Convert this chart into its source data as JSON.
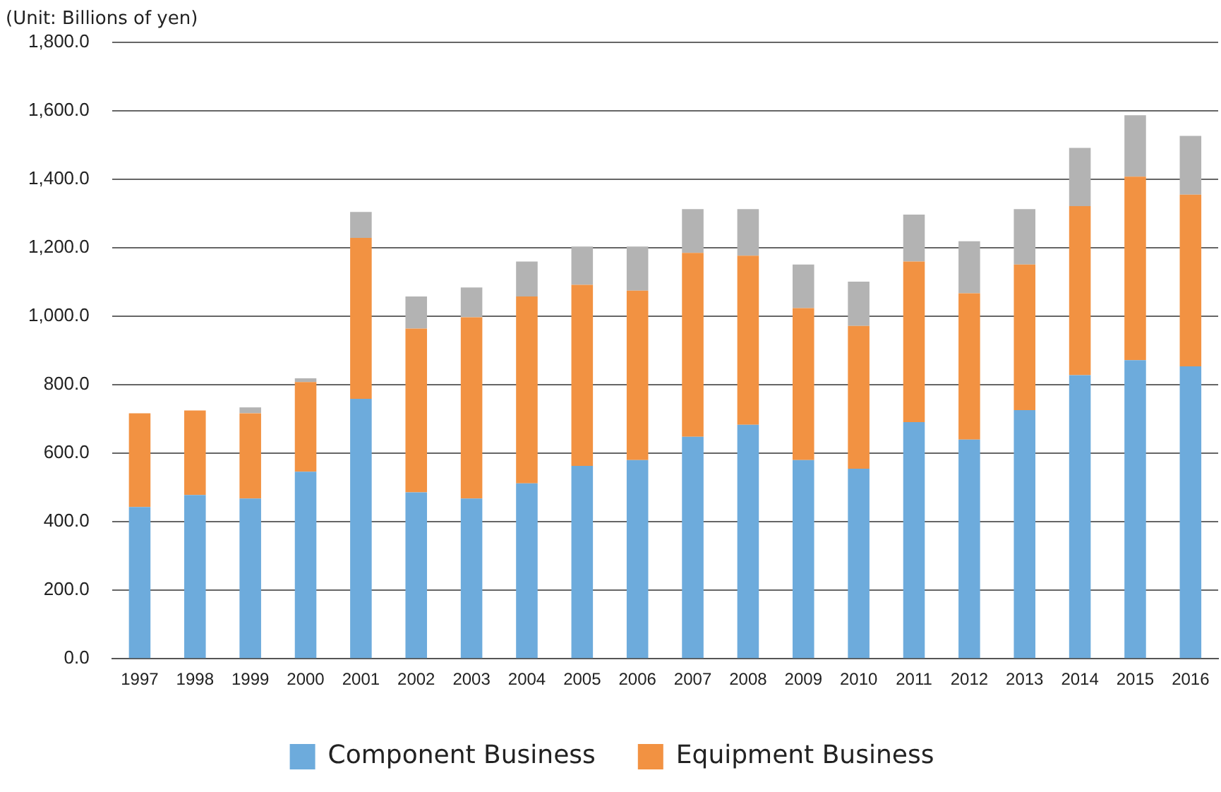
{
  "chart_data": {
    "type": "bar",
    "stacked": true,
    "annotations": [
      "(Unit: Billions of yen)"
    ],
    "categories": [
      "1997",
      "1998",
      "1999",
      "2000",
      "2001",
      "2002",
      "2003",
      "2004",
      "2005",
      "2006",
      "2007",
      "2008",
      "2009",
      "2010",
      "2011",
      "2012",
      "2013",
      "2014",
      "2015",
      "2016"
    ],
    "series": [
      {
        "name": "Component Business",
        "color": "#6dabdc",
        "values": [
          443,
          478,
          468,
          546,
          759,
          486,
          468,
          512,
          563,
          580,
          648,
          683,
          580,
          555,
          691,
          640,
          726,
          828,
          872,
          854
        ]
      },
      {
        "name": "Equipment Business",
        "color": "#f29242",
        "values": [
          274,
          247,
          249,
          262,
          470,
          478,
          529,
          546,
          529,
          495,
          537,
          494,
          444,
          417,
          469,
          427,
          425,
          494,
          536,
          501
        ]
      },
      {
        "color": "#b3b3b3",
        "values": [
          null,
          null,
          17,
          11,
          76,
          94,
          87,
          102,
          112,
          129,
          128,
          136,
          127,
          129,
          137,
          152,
          162,
          170,
          179,
          172
        ]
      }
    ],
    "ylim": [
      0,
      1800
    ],
    "yticks": [
      {
        "value": 0,
        "label": "0.0"
      },
      {
        "value": 200,
        "label": "200.0"
      },
      {
        "value": 400,
        "label": "400.0"
      },
      {
        "value": 600,
        "label": "600.0"
      },
      {
        "value": 800,
        "label": "800.0"
      },
      {
        "value": 1000,
        "label": "1,000.0"
      },
      {
        "value": 1200,
        "label": "1,200.0"
      },
      {
        "value": 1400,
        "label": "1,400.0"
      },
      {
        "value": 1600,
        "label": "1,600.0"
      },
      {
        "value": 1800,
        "label": "1,800.0"
      }
    ],
    "grid": "y",
    "legend": "bottom"
  }
}
